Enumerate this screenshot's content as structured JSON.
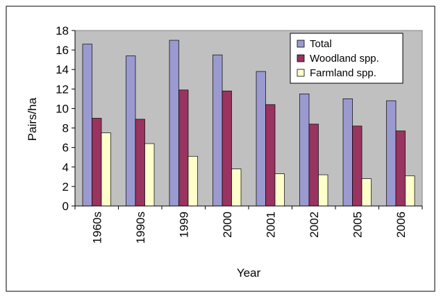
{
  "colors": {
    "plot_background": "#c0c0c0",
    "total": "#9a9ad0",
    "woodland": "#99335f",
    "farmland": "#ffffcc",
    "frame": "#000000"
  },
  "chart_data": {
    "type": "bar",
    "title": "",
    "xlabel": "Year",
    "ylabel": "Pairs/ha",
    "ylim": [
      0,
      18
    ],
    "yticks": [
      0,
      2,
      4,
      6,
      8,
      10,
      12,
      14,
      16,
      18
    ],
    "grid": false,
    "legend_position": "top-right",
    "categories": [
      "1960s",
      "1990s",
      "1999",
      "2000",
      "2001",
      "2002",
      "2005",
      "2006"
    ],
    "series": [
      {
        "name": "Total",
        "color": "#9a9ad0",
        "values": [
          16.6,
          15.4,
          17.0,
          15.5,
          13.8,
          11.5,
          11.0,
          10.8
        ]
      },
      {
        "name": "Woodland spp.",
        "color": "#99335f",
        "values": [
          9.0,
          8.9,
          11.9,
          11.8,
          10.4,
          8.4,
          8.2,
          7.7
        ]
      },
      {
        "name": "Farmland spp.",
        "color": "#ffffcc",
        "values": [
          7.5,
          6.4,
          5.1,
          3.8,
          3.3,
          3.2,
          2.8,
          3.1
        ]
      }
    ]
  }
}
